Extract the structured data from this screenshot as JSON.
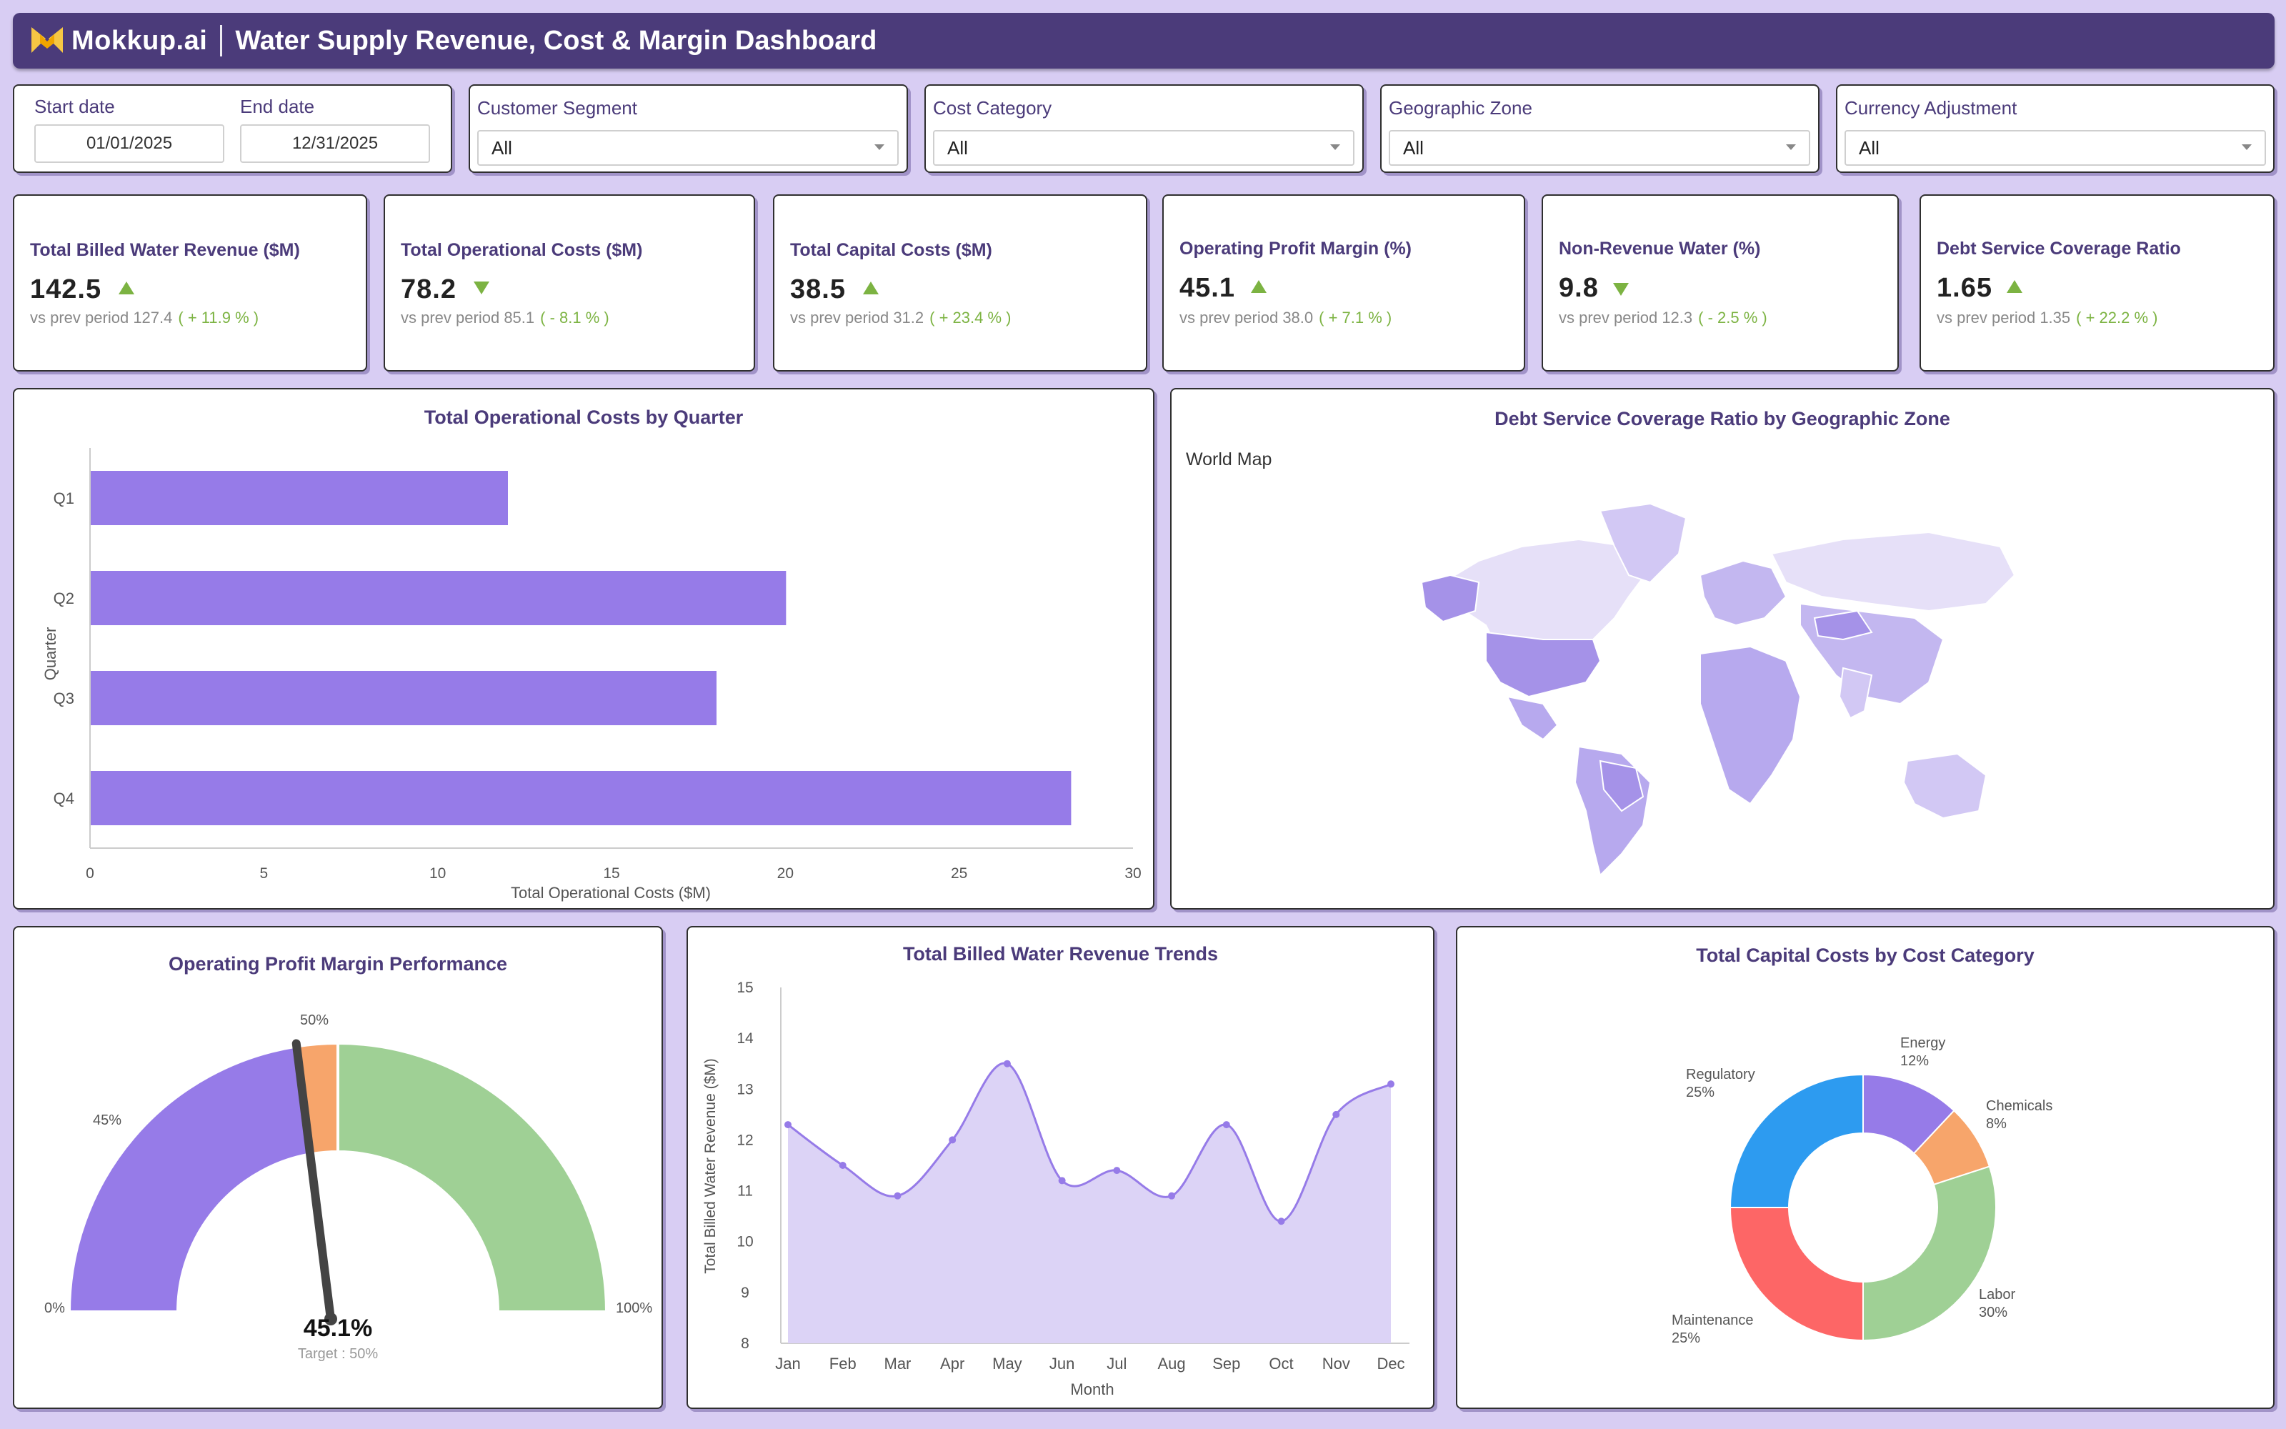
{
  "header": {
    "brand": "Mokkup.ai",
    "title": "Water Supply Revenue, Cost & Margin Dashboard"
  },
  "filters": {
    "start_label": "Start date",
    "start_value": "01/01/2025",
    "end_label": "End date",
    "end_value": "12/31/2025",
    "dropdowns": [
      {
        "label": "Customer Segment",
        "value": "All"
      },
      {
        "label": "Cost Category",
        "value": "All"
      },
      {
        "label": "Geographic Zone",
        "value": "All"
      },
      {
        "label": "Currency Adjustment",
        "value": "All"
      }
    ]
  },
  "kpis": [
    {
      "label": "Total Billed Water Revenue ($M)",
      "value": "142.5",
      "trend": "up",
      "prev": "vs prev period",
      "prev_value": "127.4",
      "delta": "( + 11.9 % )"
    },
    {
      "label": "Total Operational Costs ($M)",
      "value": "78.2",
      "trend": "down",
      "prev": "vs prev period",
      "prev_value": "85.1",
      "delta": "( - 8.1 % )"
    },
    {
      "label": "Total Capital Costs ($M)",
      "value": "38.5",
      "trend": "up",
      "prev": "vs prev period",
      "prev_value": "31.2",
      "delta": "( + 23.4 % )"
    },
    {
      "label": "Operating Profit Margin (%)",
      "value": "45.1",
      "trend": "up",
      "prev": "vs prev period",
      "prev_value": "38.0",
      "delta": "( + 7.1 % )"
    },
    {
      "label": "Non-Revenue Water (%)",
      "value": "9.8",
      "trend": "down",
      "prev": "vs prev period",
      "prev_value": "12.3",
      "delta": "( - 2.5 % )"
    },
    {
      "label": "Debt Service Coverage Ratio",
      "value": "1.65",
      "trend": "up",
      "prev": "vs prev period",
      "prev_value": "1.35",
      "delta": "( + 22.2 % )"
    }
  ],
  "map": {
    "title": "Debt Service Coverage Ratio by Geographic Zone",
    "label": "World Map"
  },
  "gauge": {
    "title": "Operating Profit Margin Performance",
    "value_text": "45.1%",
    "target_text": "Target : 50%",
    "labels": {
      "min": "0%",
      "p45": "45%",
      "p50": "50%",
      "max": "100%"
    }
  },
  "colors": {
    "purple": "#967be8",
    "orange": "#f7a56b",
    "green": "#9fd095",
    "blue": "#2d9bf0",
    "red": "#fd6666",
    "header": "#4b3b7a",
    "kpi_green": "#7cb342"
  },
  "chart_data": [
    {
      "type": "bar",
      "orientation": "horizontal",
      "title": "Total Operational Costs by Quarter",
      "xlabel": "Total Operational Costs ($M)",
      "ylabel": "Quarter",
      "categories": [
        "Q1",
        "Q2",
        "Q3",
        "Q4"
      ],
      "values": [
        12,
        20,
        18,
        28.2
      ],
      "xlim": [
        0,
        30
      ],
      "xticks": [
        0,
        5,
        10,
        15,
        20,
        25,
        30
      ]
    },
    {
      "type": "area",
      "title": "Total Billed Water Revenue Trends",
      "xlabel": "Month",
      "ylabel": "Total Billed Water Revenue ($M)",
      "categories": [
        "Jan",
        "Feb",
        "Mar",
        "Apr",
        "May",
        "Jun",
        "Jul",
        "Aug",
        "Sep",
        "Oct",
        "Nov",
        "Dec"
      ],
      "values": [
        12.3,
        11.5,
        10.9,
        12.0,
        13.5,
        11.2,
        11.4,
        10.9,
        12.3,
        10.4,
        12.5,
        13.1
      ],
      "ylim": [
        8,
        15
      ],
      "yticks": [
        8,
        9,
        10,
        11,
        12,
        13,
        14,
        15
      ]
    },
    {
      "type": "pie",
      "donut": true,
      "title": "Total Capital Costs by Cost Category",
      "slices": [
        {
          "name": "Energy",
          "pct": 12,
          "label": "12%"
        },
        {
          "name": "Chemicals",
          "pct": 8,
          "label": "8%"
        },
        {
          "name": "Labor",
          "pct": 30,
          "label": "30%"
        },
        {
          "name": "Maintenance",
          "pct": 25,
          "label": "25%"
        },
        {
          "name": "Regulatory",
          "pct": 25,
          "label": "25%"
        }
      ]
    },
    {
      "type": "gauge",
      "title": "Operating Profit Margin Performance",
      "value": 45.1,
      "target": 50,
      "range": [
        0,
        100
      ],
      "bands": [
        {
          "from": 0,
          "to": 45
        },
        {
          "from": 45,
          "to": 50
        },
        {
          "from": 50,
          "to": 100
        }
      ]
    }
  ]
}
